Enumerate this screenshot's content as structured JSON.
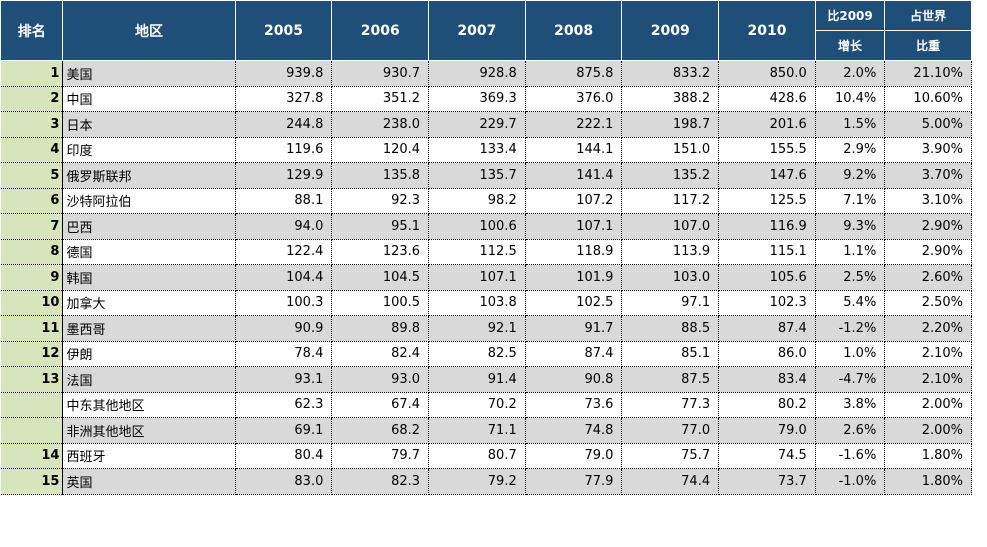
{
  "header": {
    "rank": "排名",
    "region": "地区",
    "years": [
      "2005",
      "2006",
      "2007",
      "2008",
      "2009",
      "2010"
    ],
    "growth_top": "比2009",
    "growth_bottom": "增长",
    "share_top": "占世界",
    "share_bottom": "比重"
  },
  "colors": {
    "header_bg": "#1f4e79",
    "rank_bg": "#d8e4bc",
    "row_shade": "#d9d9d9"
  },
  "rows": [
    {
      "rank": "1",
      "region": "美国",
      "values": [
        "939.8",
        "930.7",
        "928.8",
        "875.8",
        "833.2",
        "850.0"
      ],
      "growth": "2.0%",
      "share": "21.10%"
    },
    {
      "rank": "2",
      "region": "中国",
      "values": [
        "327.8",
        "351.2",
        "369.3",
        "376.0",
        "388.2",
        "428.6"
      ],
      "growth": "10.4%",
      "share": "10.60%"
    },
    {
      "rank": "3",
      "region": "日本",
      "values": [
        "244.8",
        "238.0",
        "229.7",
        "222.1",
        "198.7",
        "201.6"
      ],
      "growth": "1.5%",
      "share": "5.00%"
    },
    {
      "rank": "4",
      "region": "印度",
      "values": [
        "119.6",
        "120.4",
        "133.4",
        "144.1",
        "151.0",
        "155.5"
      ],
      "growth": "2.9%",
      "share": "3.90%"
    },
    {
      "rank": "5",
      "region": "俄罗斯联邦",
      "values": [
        "129.9",
        "135.8",
        "135.7",
        "141.4",
        "135.2",
        "147.6"
      ],
      "growth": "9.2%",
      "share": "3.70%"
    },
    {
      "rank": "6",
      "region": "沙特阿拉伯",
      "values": [
        "88.1",
        "92.3",
        "98.2",
        "107.2",
        "117.2",
        "125.5"
      ],
      "growth": "7.1%",
      "share": "3.10%"
    },
    {
      "rank": "7",
      "region": "巴西",
      "values": [
        "94.0",
        "95.1",
        "100.6",
        "107.1",
        "107.0",
        "116.9"
      ],
      "growth": "9.3%",
      "share": "2.90%"
    },
    {
      "rank": "8",
      "region": "德国",
      "values": [
        "122.4",
        "123.6",
        "112.5",
        "118.9",
        "113.9",
        "115.1"
      ],
      "growth": "1.1%",
      "share": "2.90%"
    },
    {
      "rank": "9",
      "region": "韩国",
      "values": [
        "104.4",
        "104.5",
        "107.1",
        "101.9",
        "103.0",
        "105.6"
      ],
      "growth": "2.5%",
      "share": "2.60%"
    },
    {
      "rank": "10",
      "region": "加拿大",
      "values": [
        "100.3",
        "100.5",
        "103.8",
        "102.5",
        "97.1",
        "102.3"
      ],
      "growth": "5.4%",
      "share": "2.50%"
    },
    {
      "rank": "11",
      "region": "墨西哥",
      "values": [
        "90.9",
        "89.8",
        "92.1",
        "91.7",
        "88.5",
        "87.4"
      ],
      "growth": "-1.2%",
      "share": "2.20%"
    },
    {
      "rank": "12",
      "region": "伊朗",
      "values": [
        "78.4",
        "82.4",
        "82.5",
        "87.4",
        "85.1",
        "86.0"
      ],
      "growth": "1.0%",
      "share": "2.10%"
    },
    {
      "rank": "13",
      "region": "法国",
      "values": [
        "93.1",
        "93.0",
        "91.4",
        "90.8",
        "87.5",
        "83.4"
      ],
      "growth": "-4.7%",
      "share": "2.10%"
    },
    {
      "rank": "",
      "region": "中东其他地区",
      "values": [
        "62.3",
        "67.4",
        "70.2",
        "73.6",
        "77.3",
        "80.2"
      ],
      "growth": "3.8%",
      "share": "2.00%"
    },
    {
      "rank": "",
      "region": "非洲其他地区",
      "values": [
        "69.1",
        "68.2",
        "71.1",
        "74.8",
        "77.0",
        "79.0"
      ],
      "growth": "2.6%",
      "share": "2.00%"
    },
    {
      "rank": "14",
      "region": "西班牙",
      "values": [
        "80.4",
        "79.7",
        "80.7",
        "79.0",
        "75.7",
        "74.5"
      ],
      "growth": "-1.6%",
      "share": "1.80%"
    },
    {
      "rank": "15",
      "region": "英国",
      "values": [
        "83.0",
        "82.3",
        "79.2",
        "77.9",
        "74.4",
        "73.7"
      ],
      "growth": "-1.0%",
      "share": "1.80%"
    }
  ]
}
